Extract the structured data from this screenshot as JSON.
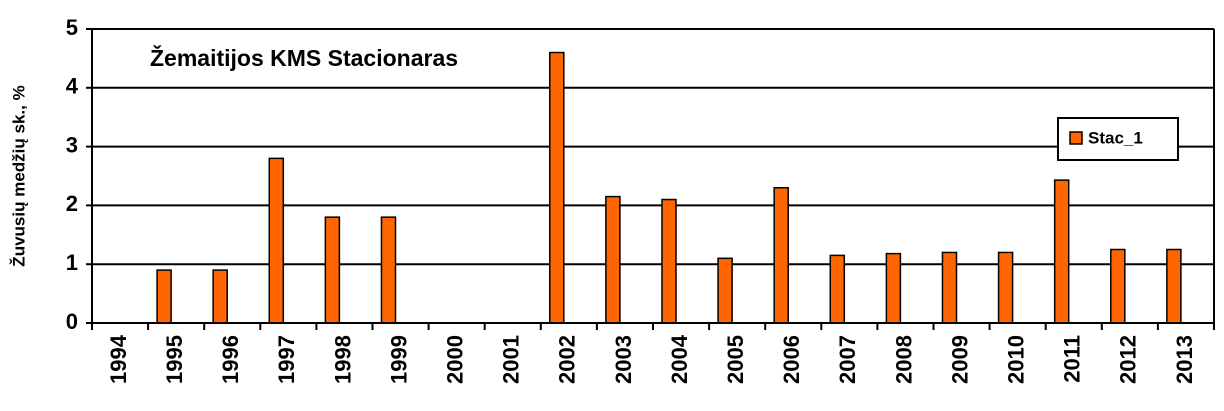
{
  "chart_data": {
    "type": "bar",
    "title": "Žemaitijos KMS Stacionaras",
    "y_label": "Žuvusių medžių sk., %",
    "categories": [
      "1994",
      "1995",
      "1996",
      "1997",
      "1998",
      "1999",
      "2000",
      "2001",
      "2002",
      "2003",
      "2004",
      "2005",
      "2006",
      "2007",
      "2008",
      "2009",
      "2010",
      "2011",
      "2012",
      "2013"
    ],
    "series": [
      {
        "name": "Stac_1",
        "color": "#ff6600",
        "values": [
          0,
          0.9,
          0.9,
          2.8,
          1.8,
          1.8,
          0,
          0,
          4.6,
          2.15,
          2.1,
          1.1,
          2.3,
          1.15,
          1.18,
          1.2,
          1.2,
          2.43,
          1.25,
          1.25
        ]
      }
    ],
    "ylim": [
      0,
      5
    ],
    "yticks": [
      0,
      1,
      2,
      3,
      4,
      5
    ],
    "grid": true,
    "legend": "right"
  }
}
